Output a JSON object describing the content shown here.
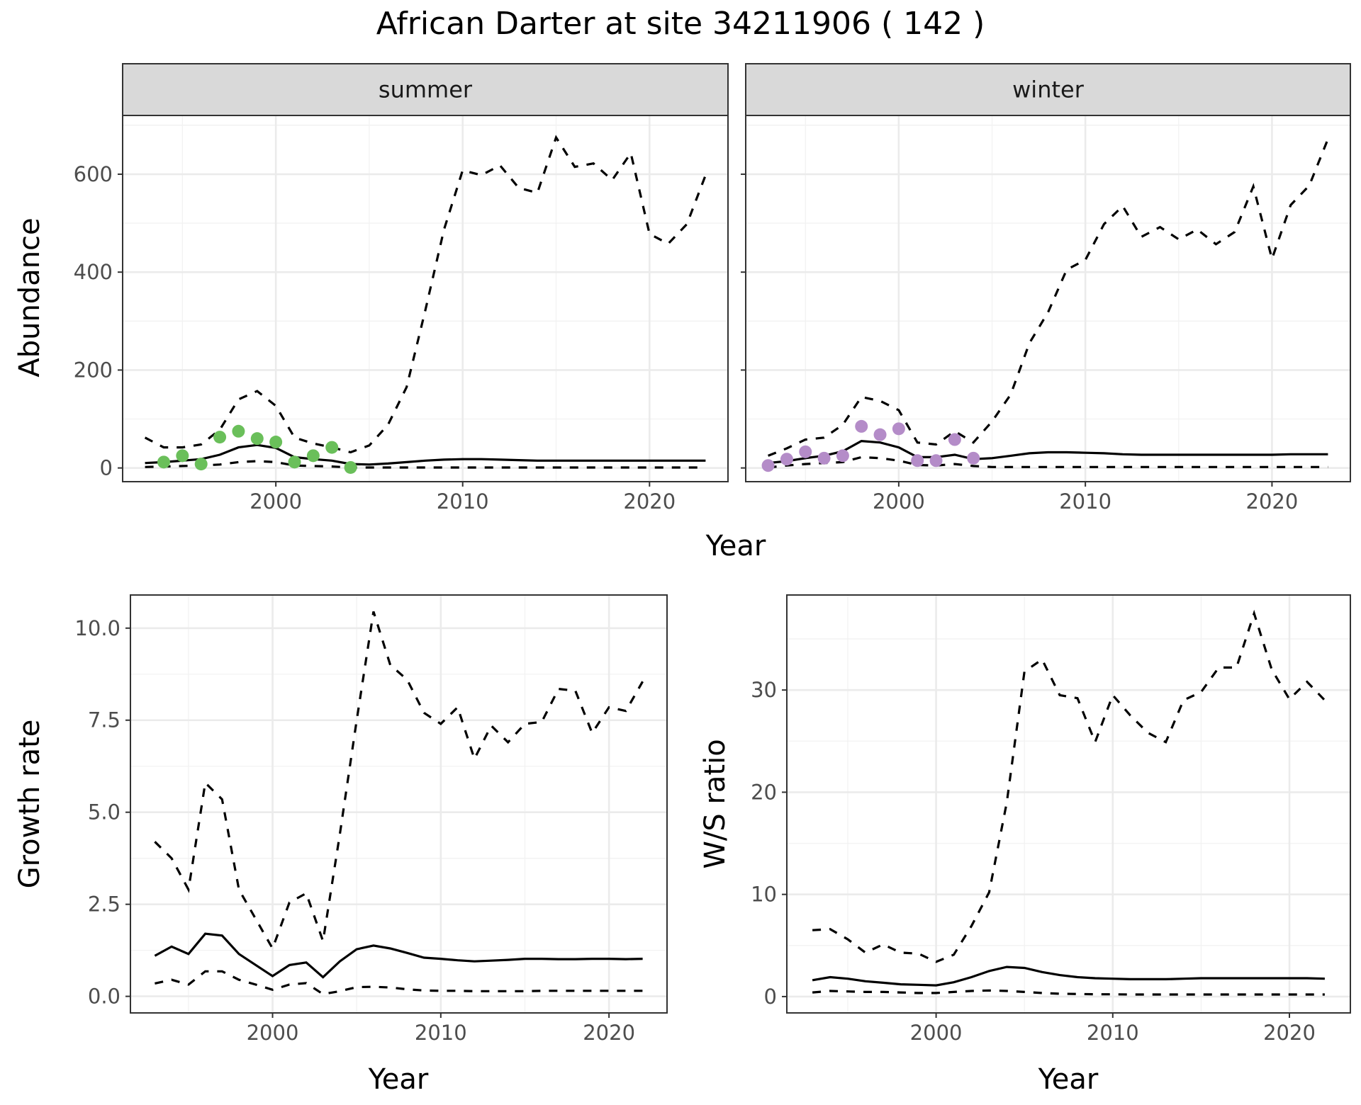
{
  "title": "African Darter at site 34211906 ( 142 )",
  "colors": {
    "summer_points": "#6abf5a",
    "winter_points": "#b48cc8",
    "lines": "#000000"
  },
  "chart_data": [
    {
      "type": "line",
      "panel": "summer",
      "facet_label": "summer",
      "xlabel": "Year",
      "ylabel": "Abundance",
      "xlim": [
        1991.8,
        2024.2
      ],
      "ylim": [
        -28,
        720
      ],
      "x_ticks": [
        2000,
        2010,
        2020
      ],
      "y_ticks": [
        0,
        200,
        400,
        600
      ],
      "grid": true,
      "series": [
        {
          "style": "solid",
          "x": [
            1993,
            1994,
            1995,
            1996,
            1997,
            1998,
            1999,
            2000,
            2001,
            2002,
            2003,
            2004,
            2005,
            2006,
            2007,
            2008,
            2009,
            2010,
            2011,
            2012,
            2013,
            2014,
            2015,
            2016,
            2017,
            2018,
            2019,
            2020,
            2021,
            2022,
            2023
          ],
          "values": [
            10,
            12,
            15,
            18,
            27,
            42,
            47,
            41,
            22,
            18,
            15,
            8,
            7,
            9,
            12,
            15,
            17,
            18,
            18,
            17,
            16,
            15,
            15,
            15,
            15,
            15,
            15,
            15,
            15,
            15,
            15
          ]
        },
        {
          "style": "dashed",
          "x": [
            1993,
            1994,
            1995,
            1996,
            1997,
            1998,
            1999,
            2000,
            2001,
            2002,
            2003,
            2004,
            2005,
            2006,
            2007,
            2008,
            2009,
            2010,
            2011,
            2012,
            2013,
            2014,
            2015,
            2016,
            2017,
            2018,
            2019,
            2020,
            2021,
            2022,
            2023
          ],
          "values": [
            62,
            42,
            42,
            48,
            78,
            140,
            157,
            127,
            62,
            50,
            42,
            32,
            46,
            88,
            165,
            322,
            487,
            608,
            598,
            618,
            572,
            562,
            675,
            615,
            622,
            588,
            643,
            478,
            458,
            498,
            598
          ]
        },
        {
          "style": "dashed",
          "x": [
            1993,
            1994,
            1995,
            1996,
            1997,
            1998,
            1999,
            2000,
            2001,
            2002,
            2003,
            2004,
            2005,
            2006,
            2007,
            2008,
            2009,
            2010,
            2011,
            2012,
            2013,
            2014,
            2015,
            2016,
            2017,
            2018,
            2019,
            2020,
            2021,
            2022,
            2023
          ],
          "values": [
            2,
            3,
            4,
            5,
            7,
            12,
            14,
            12,
            5,
            4,
            3,
            1,
            1,
            1,
            1,
            1,
            1,
            1,
            1,
            1,
            1,
            1,
            1,
            1,
            1,
            1,
            1,
            1,
            1,
            1,
            1
          ]
        }
      ],
      "points": {
        "x": [
          1994,
          1995,
          1996,
          1997,
          1998,
          1999,
          2000,
          2001,
          2002,
          2003,
          2004
        ],
        "values": [
          12,
          25,
          8,
          63,
          75,
          60,
          53,
          12,
          25,
          42,
          1
        ]
      }
    },
    {
      "type": "line",
      "panel": "winter",
      "facet_label": "winter",
      "xlabel": "Year",
      "ylabel": "Abundance",
      "xlim": [
        1991.8,
        2024.2
      ],
      "ylim": [
        -28,
        720
      ],
      "x_ticks": [
        2000,
        2010,
        2020
      ],
      "y_ticks": [
        0,
        200,
        400,
        600
      ],
      "grid": true,
      "series": [
        {
          "style": "solid",
          "x": [
            1993,
            1994,
            1995,
            1996,
            1997,
            1998,
            1999,
            2000,
            2001,
            2002,
            2003,
            2004,
            2005,
            2006,
            2007,
            2008,
            2009,
            2010,
            2011,
            2012,
            2013,
            2014,
            2015,
            2016,
            2017,
            2018,
            2019,
            2020,
            2021,
            2022,
            2023
          ],
          "values": [
            10,
            14,
            20,
            25,
            34,
            55,
            52,
            42,
            22,
            22,
            27,
            18,
            20,
            25,
            30,
            32,
            32,
            31,
            30,
            28,
            27,
            27,
            27,
            27,
            27,
            27,
            27,
            27,
            28,
            28,
            28
          ]
        },
        {
          "style": "dashed",
          "x": [
            1993,
            1994,
            1995,
            1996,
            1997,
            1998,
            1999,
            2000,
            2001,
            2002,
            2003,
            2004,
            2005,
            2006,
            2007,
            2008,
            2009,
            2010,
            2011,
            2012,
            2013,
            2014,
            2015,
            2016,
            2017,
            2018,
            2019,
            2020,
            2021,
            2022,
            2023
          ],
          "values": [
            25,
            40,
            58,
            62,
            88,
            145,
            137,
            118,
            52,
            48,
            75,
            52,
            95,
            150,
            255,
            318,
            405,
            425,
            498,
            535,
            472,
            492,
            467,
            487,
            457,
            482,
            575,
            427,
            537,
            577,
            672
          ]
        },
        {
          "style": "dashed",
          "x": [
            1993,
            1994,
            1995,
            1996,
            1997,
            1998,
            1999,
            2000,
            2001,
            2002,
            2003,
            2004,
            2005,
            2006,
            2007,
            2008,
            2009,
            2010,
            2011,
            2012,
            2013,
            2014,
            2015,
            2016,
            2017,
            2018,
            2019,
            2020,
            2021,
            2022,
            2023
          ],
          "values": [
            1,
            5,
            8,
            10,
            12,
            22,
            20,
            15,
            6,
            5,
            8,
            4,
            2,
            2,
            2,
            2,
            2,
            2,
            2,
            2,
            2,
            2,
            2,
            2,
            2,
            2,
            2,
            2,
            2,
            2,
            2
          ]
        }
      ],
      "points": {
        "x": [
          1993,
          1994,
          1995,
          1996,
          1997,
          1998,
          1999,
          2000,
          2001,
          2002,
          2003,
          2004
        ],
        "values": [
          5,
          18,
          33,
          20,
          25,
          85,
          68,
          80,
          15,
          15,
          58,
          20
        ]
      }
    },
    {
      "type": "line",
      "panel": "growth",
      "xlabel": "Year",
      "ylabel": "Growth rate",
      "xlim": [
        1991.55,
        2023.45
      ],
      "ylim": [
        -0.45,
        10.9
      ],
      "x_ticks": [
        2000,
        2010,
        2020
      ],
      "y_ticks": [
        0.0,
        2.5,
        5.0,
        7.5,
        10.0
      ],
      "y_tick_labels": [
        "0.0",
        "2.5",
        "5.0",
        "7.5",
        "10.0"
      ],
      "grid": true,
      "series": [
        {
          "style": "solid",
          "x": [
            1993,
            1994,
            1995,
            1996,
            1997,
            1998,
            1999,
            2000,
            2001,
            2002,
            2003,
            2004,
            2005,
            2006,
            2007,
            2008,
            2009,
            2010,
            2011,
            2012,
            2013,
            2014,
            2015,
            2016,
            2017,
            2018,
            2019,
            2020,
            2021,
            2022
          ],
          "values": [
            1.1,
            1.35,
            1.15,
            1.7,
            1.65,
            1.15,
            0.85,
            0.55,
            0.85,
            0.92,
            0.52,
            0.95,
            1.28,
            1.38,
            1.3,
            1.18,
            1.05,
            1.02,
            0.98,
            0.95,
            0.97,
            0.99,
            1.02,
            1.02,
            1.01,
            1.01,
            1.02,
            1.02,
            1.01,
            1.02
          ]
        },
        {
          "style": "dashed",
          "x": [
            1993,
            1994,
            1995,
            1996,
            1997,
            1998,
            1999,
            2000,
            2001,
            2002,
            2003,
            2004,
            2005,
            2006,
            2007,
            2008,
            2009,
            2010,
            2011,
            2012,
            2013,
            2014,
            2015,
            2016,
            2017,
            2018,
            2019,
            2020,
            2021,
            2022
          ],
          "values": [
            4.2,
            3.75,
            2.9,
            5.8,
            5.35,
            2.9,
            2.1,
            1.3,
            2.55,
            2.8,
            1.5,
            4.4,
            7.5,
            10.45,
            9.0,
            8.6,
            7.7,
            7.4,
            7.85,
            6.45,
            7.35,
            6.9,
            7.4,
            7.45,
            8.35,
            8.3,
            7.15,
            7.85,
            7.75,
            8.55
          ]
        },
        {
          "style": "dashed",
          "x": [
            1993,
            1994,
            1995,
            1996,
            1997,
            1998,
            1999,
            2000,
            2001,
            2002,
            2003,
            2004,
            2005,
            2006,
            2007,
            2008,
            2009,
            2010,
            2011,
            2012,
            2013,
            2014,
            2015,
            2016,
            2017,
            2018,
            2019,
            2020,
            2021,
            2022
          ],
          "values": [
            0.35,
            0.45,
            0.32,
            0.68,
            0.68,
            0.45,
            0.32,
            0.18,
            0.32,
            0.36,
            0.06,
            0.14,
            0.25,
            0.26,
            0.24,
            0.19,
            0.16,
            0.15,
            0.15,
            0.14,
            0.14,
            0.14,
            0.14,
            0.15,
            0.15,
            0.15,
            0.15,
            0.15,
            0.15,
            0.15
          ]
        }
      ]
    },
    {
      "type": "line",
      "panel": "ratio",
      "xlabel": "Year",
      "ylabel": "W/S ratio",
      "xlim": [
        1991.55,
        2023.45
      ],
      "ylim": [
        -1.6,
        39.3
      ],
      "x_ticks": [
        2000,
        2010,
        2020
      ],
      "y_ticks": [
        0,
        10,
        20,
        30
      ],
      "grid": true,
      "series": [
        {
          "style": "solid",
          "x": [
            1993,
            1994,
            1995,
            1996,
            1997,
            1998,
            1999,
            2000,
            2001,
            2002,
            2003,
            2004,
            2005,
            2006,
            2007,
            2008,
            2009,
            2010,
            2011,
            2012,
            2013,
            2014,
            2015,
            2016,
            2017,
            2018,
            2019,
            2020,
            2021,
            2022
          ],
          "values": [
            1.6,
            1.9,
            1.75,
            1.5,
            1.35,
            1.2,
            1.15,
            1.1,
            1.4,
            1.9,
            2.5,
            2.9,
            2.8,
            2.4,
            2.1,
            1.9,
            1.8,
            1.75,
            1.7,
            1.7,
            1.7,
            1.75,
            1.8,
            1.8,
            1.8,
            1.8,
            1.8,
            1.8,
            1.8,
            1.75
          ]
        },
        {
          "style": "dashed",
          "x": [
            1993,
            1994,
            1995,
            1996,
            1997,
            1998,
            1999,
            2000,
            2001,
            2002,
            2003,
            2004,
            2005,
            2006,
            2007,
            2008,
            2009,
            2010,
            2011,
            2012,
            2013,
            2014,
            2015,
            2016,
            2017,
            2018,
            2019,
            2020,
            2021,
            2022
          ],
          "values": [
            6.5,
            6.6,
            5.6,
            4.3,
            5.1,
            4.3,
            4.2,
            3.4,
            4.1,
            6.9,
            10.2,
            19.0,
            31.8,
            33.0,
            29.5,
            29.2,
            24.9,
            29.5,
            27.5,
            25.8,
            24.9,
            29.0,
            29.8,
            32.2,
            32.2,
            37.5,
            32.0,
            29.1,
            30.8,
            29.0
          ]
        },
        {
          "style": "dashed",
          "x": [
            1993,
            1994,
            1995,
            1996,
            1997,
            1998,
            1999,
            2000,
            2001,
            2002,
            2003,
            2004,
            2005,
            2006,
            2007,
            2008,
            2009,
            2010,
            2011,
            2012,
            2013,
            2014,
            2015,
            2016,
            2017,
            2018,
            2019,
            2020,
            2021,
            2022
          ],
          "values": [
            0.4,
            0.55,
            0.5,
            0.45,
            0.45,
            0.4,
            0.35,
            0.35,
            0.45,
            0.55,
            0.6,
            0.55,
            0.45,
            0.35,
            0.28,
            0.25,
            0.22,
            0.22,
            0.2,
            0.2,
            0.2,
            0.2,
            0.2,
            0.2,
            0.2,
            0.2,
            0.2,
            0.2,
            0.2,
            0.2
          ]
        }
      ]
    }
  ]
}
